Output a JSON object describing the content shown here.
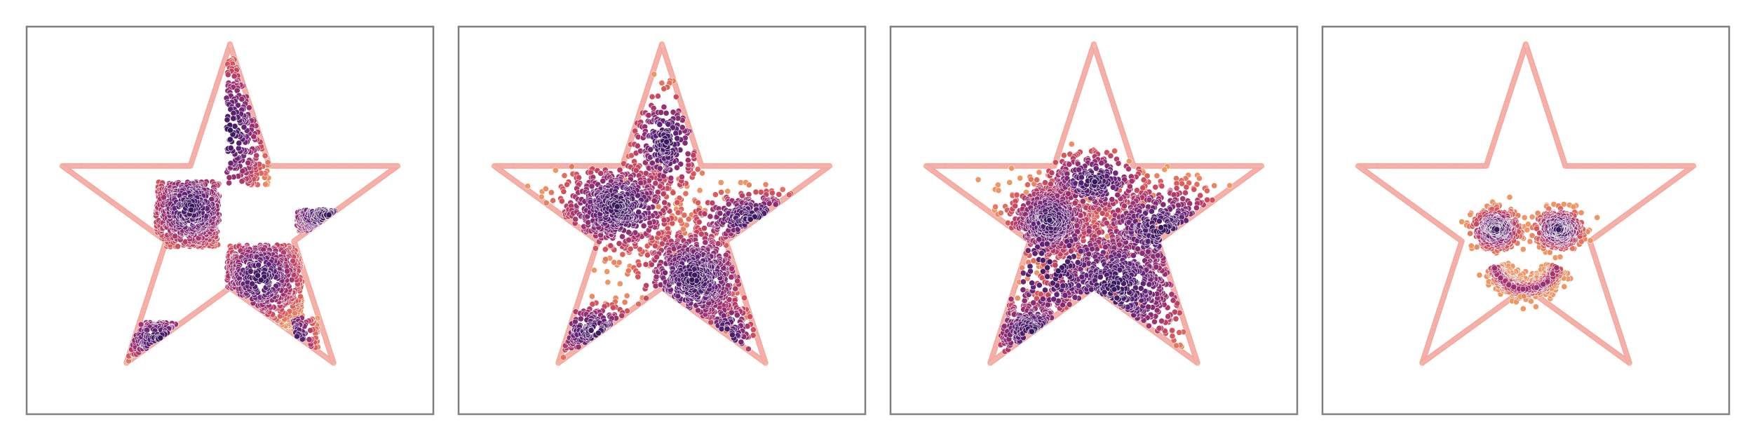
{
  "chart_data": [
    {
      "type": "scatter",
      "panel": 1,
      "title": "",
      "xlabel": "",
      "ylabel": "",
      "xlim": [
        -1.1,
        1.1
      ],
      "ylim": [
        -1.1,
        1.1
      ],
      "grid": false,
      "legend": "none",
      "boundary": {
        "shape": "five-pointed star",
        "outer_radius": 1.0,
        "inner_radius": 0.382,
        "color": "#f3a59c"
      },
      "series": [
        {
          "shape": "checkerboard cells clipped to star",
          "clusters": [
            {
              "cx": -0.22,
              "cy": 0.07,
              "sx": 0.12,
              "sy": 0.12,
              "n": 560,
              "box": [
                -0.42,
                -0.06,
                -0.15,
                0.22
              ]
            },
            {
              "cx": 0.17,
              "cy": -0.32,
              "sx": 0.12,
              "sy": 0.12,
              "n": 560,
              "box": [
                -0.02,
                0.41,
                -0.62,
                -0.14
              ]
            },
            {
              "cx": 0.0,
              "cy": 0.5,
              "sx": 0.1,
              "sy": 0.2,
              "n": 230,
              "box": [
                -0.02,
                0.22,
                0.2,
                0.95
              ]
            },
            {
              "cx": 0.56,
              "cy": 0.03,
              "sx": 0.15,
              "sy": 0.08,
              "n": 200,
              "box": [
                0.38,
                0.95,
                -0.06,
                0.06
              ]
            },
            {
              "cx": -0.4,
              "cy": -0.67,
              "sx": 0.12,
              "sy": 0.07,
              "n": 130,
              "box": [
                -0.62,
                -0.2,
                -0.86,
                -0.58
              ]
            },
            {
              "cx": 0.38,
              "cy": -0.7,
              "sx": 0.05,
              "sy": 0.12,
              "n": 60,
              "box": [
                0.36,
                0.5,
                -0.9,
                -0.55
              ]
            }
          ]
        }
      ]
    },
    {
      "type": "scatter",
      "panel": 2,
      "title": "",
      "xlabel": "",
      "ylabel": "",
      "xlim": [
        -1.1,
        1.1
      ],
      "ylim": [
        -1.1,
        1.1
      ],
      "grid": false,
      "legend": "none",
      "boundary": {
        "shape": "five-pointed star",
        "outer_radius": 1.0,
        "inner_radius": 0.382,
        "color": "#f3a59c"
      },
      "series": [
        {
          "shape": "diffused checkerboard blobs",
          "clusters": [
            {
              "cx": -0.25,
              "cy": 0.08,
              "sx": 0.17,
              "sy": 0.13,
              "n": 620
            },
            {
              "cx": 0.18,
              "cy": -0.33,
              "sx": 0.16,
              "sy": 0.15,
              "n": 620
            },
            {
              "cx": 0.02,
              "cy": 0.44,
              "sx": 0.1,
              "sy": 0.15,
              "n": 240
            },
            {
              "cx": 0.52,
              "cy": 0.01,
              "sx": 0.18,
              "sy": 0.08,
              "n": 220
            },
            {
              "cx": -0.38,
              "cy": -0.63,
              "sx": 0.14,
              "sy": 0.08,
              "n": 150
            },
            {
              "cx": 0.37,
              "cy": -0.66,
              "sx": 0.08,
              "sy": 0.12,
              "n": 90
            }
          ]
        }
      ]
    },
    {
      "type": "scatter",
      "panel": 3,
      "title": "",
      "xlabel": "",
      "ylabel": "",
      "xlim": [
        -1.1,
        1.1
      ],
      "ylim": [
        -1.1,
        1.1
      ],
      "grid": false,
      "legend": "none",
      "boundary": {
        "shape": "five-pointed star",
        "outer_radius": 1.0,
        "inner_radius": 0.382,
        "color": "#f3a59c"
      },
      "series": [
        {
          "shape": "transitional diffuse blobs",
          "clusters": [
            {
              "cx": -0.25,
              "cy": 0.0,
              "sx": 0.12,
              "sy": 0.11,
              "n": 520
            },
            {
              "cx": 0.12,
              "cy": -0.38,
              "sx": 0.22,
              "sy": 0.2,
              "n": 640
            },
            {
              "cx": 0.38,
              "cy": -0.05,
              "sx": 0.2,
              "sy": 0.13,
              "n": 420
            },
            {
              "cx": 0.0,
              "cy": 0.22,
              "sx": 0.15,
              "sy": 0.09,
              "n": 300
            },
            {
              "cx": -0.35,
              "cy": -0.63,
              "sx": 0.13,
              "sy": 0.1,
              "n": 200
            },
            {
              "cx": -0.22,
              "cy": -0.27,
              "sx": 0.22,
              "sy": 0.2,
              "n": 160
            }
          ]
        }
      ]
    },
    {
      "type": "scatter",
      "panel": 4,
      "title": "",
      "xlabel": "",
      "ylabel": "",
      "xlim": [
        -1.1,
        1.1
      ],
      "ylim": [
        -1.1,
        1.1
      ],
      "grid": false,
      "legend": "none",
      "boundary": {
        "shape": "five-pointed star",
        "outer_radius": 1.0,
        "inner_radius": 0.382,
        "color": "#f3a59c"
      },
      "series": [
        {
          "shape": "smiley face",
          "clusters": [
            {
              "cx": -0.17,
              "cy": -0.05,
              "sx": 0.065,
              "sy": 0.055,
              "n": 440
            },
            {
              "cx": 0.19,
              "cy": -0.05,
              "sx": 0.065,
              "sy": 0.055,
              "n": 440
            }
          ],
          "mouth_arc": {
            "cx": 0.0,
            "cy": -0.2,
            "r": 0.19,
            "from_deg": 200,
            "to_deg": 340,
            "width": 0.035,
            "n": 420
          }
        }
      ]
    }
  ]
}
